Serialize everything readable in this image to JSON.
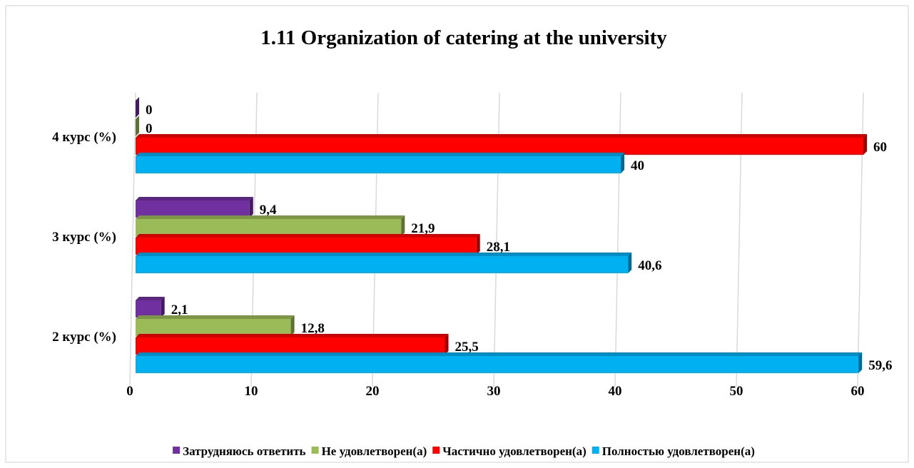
{
  "chart_data": {
    "type": "bar",
    "orientation": "horizontal",
    "title": "1.11 Organization of catering at the university",
    "categories": [
      "2 курс (%)",
      "3 курс (%)",
      "4 курс (%)"
    ],
    "series": [
      {
        "name": "Затрудняюсь ответить",
        "color": "#7030a0",
        "values": [
          2.1,
          9.4,
          0
        ],
        "value_labels": [
          "2,1",
          "9,4",
          "0"
        ]
      },
      {
        "name": "Не удовлетворен(а)",
        "color": "#9bbb59",
        "values": [
          12.8,
          21.9,
          0
        ],
        "value_labels": [
          "12,8",
          "21,9",
          "0"
        ]
      },
      {
        "name": "Частично удовлетворен(а)",
        "color": "#ff0000",
        "values": [
          25.5,
          28.1,
          60
        ],
        "value_labels": [
          "25,5",
          "28,1",
          "60"
        ]
      },
      {
        "name": "Полностью удовлетворен(а)",
        "color": "#00b0f0",
        "values": [
          59.6,
          40.6,
          40
        ],
        "value_labels": [
          "59,6",
          "40,6",
          "40"
        ]
      }
    ],
    "xlim": [
      0,
      60
    ],
    "xticks": [
      0,
      10,
      20,
      30,
      40,
      50,
      60
    ],
    "grid": true,
    "legend": "bottom"
  }
}
